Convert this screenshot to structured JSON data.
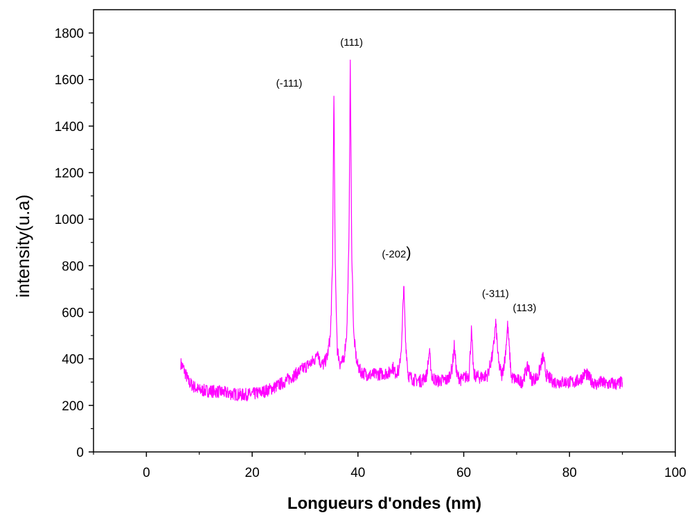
{
  "chart_data": {
    "type": "line",
    "title": "",
    "xlabel": "Longueurs d'ondes (nm)",
    "ylabel": "intensity(u.a)",
    "xlim": [
      -10,
      100
    ],
    "ylim": [
      0,
      1900
    ],
    "x_ticks": [
      0,
      20,
      40,
      60,
      80,
      100
    ],
    "y_ticks": [
      0,
      200,
      400,
      600,
      800,
      1000,
      1200,
      1400,
      1600,
      1800
    ],
    "x_tick_labels": [
      "0",
      "20",
      "40",
      "60",
      "80",
      "100"
    ],
    "y_tick_labels": [
      "0",
      "200",
      "400",
      "600",
      "800",
      "1000",
      "1200",
      "1400",
      "1600",
      "1800"
    ],
    "grid": false,
    "legend": "none",
    "line_color": "#ff00ff",
    "series": [
      {
        "x": [
          6.5,
          7,
          8,
          9,
          10,
          12,
          14,
          16,
          18,
          20,
          22,
          24,
          26,
          28,
          30,
          31,
          32,
          32.3,
          32.8,
          33.5,
          34.2,
          34.8,
          35.2,
          35.45,
          35.7,
          36.1,
          36.6,
          37.3,
          37.9,
          38.3,
          38.55,
          38.8,
          39.2,
          39.8,
          40.5,
          42,
          44,
          46,
          46.5,
          47,
          47.8,
          48.3,
          48.65,
          49,
          49.5,
          50.5,
          52,
          53,
          53.5,
          54,
          55,
          57,
          57.8,
          58.2,
          58.7,
          59.5,
          61,
          61.45,
          61.9,
          63,
          64.5,
          65.5,
          66.05,
          66.6,
          67.2,
          67.8,
          68.3,
          69,
          71,
          72.2,
          72.8,
          74,
          75,
          75.6,
          77,
          79,
          80,
          81,
          82,
          83,
          84,
          85,
          86,
          87,
          88,
          89,
          90
        ],
        "y": [
          380,
          360,
          300,
          280,
          265,
          262,
          258,
          250,
          245,
          248,
          258,
          275,
          300,
          330,
          365,
          380,
          400,
          445,
          385,
          375,
          410,
          500,
          800,
          1555,
          800,
          440,
          380,
          390,
          520,
          900,
          1685,
          900,
          500,
          380,
          345,
          330,
          335,
          340,
          370,
          340,
          350,
          480,
          720,
          480,
          330,
          310,
          305,
          330,
          430,
          320,
          305,
          310,
          360,
          455,
          330,
          310,
          330,
          520,
          330,
          320,
          330,
          420,
          555,
          380,
          330,
          400,
          545,
          320,
          300,
          370,
          310,
          320,
          410,
          330,
          300,
          300,
          300,
          300,
          310,
          340,
          310,
          290,
          300,
          290,
          295,
          290,
          300
        ]
      }
    ],
    "annotations": [
      {
        "text": "(-111)",
        "x": 27,
        "y": 1570
      },
      {
        "text": "(111)",
        "x": 38.8,
        "y": 1745
      },
      {
        "text": "(-202",
        "x": 47.3,
        "y": 835
      },
      {
        "text": "(-311)",
        "x": 66,
        "y": 665
      },
      {
        "text": "(113)",
        "x": 71.5,
        "y": 605
      }
    ]
  }
}
